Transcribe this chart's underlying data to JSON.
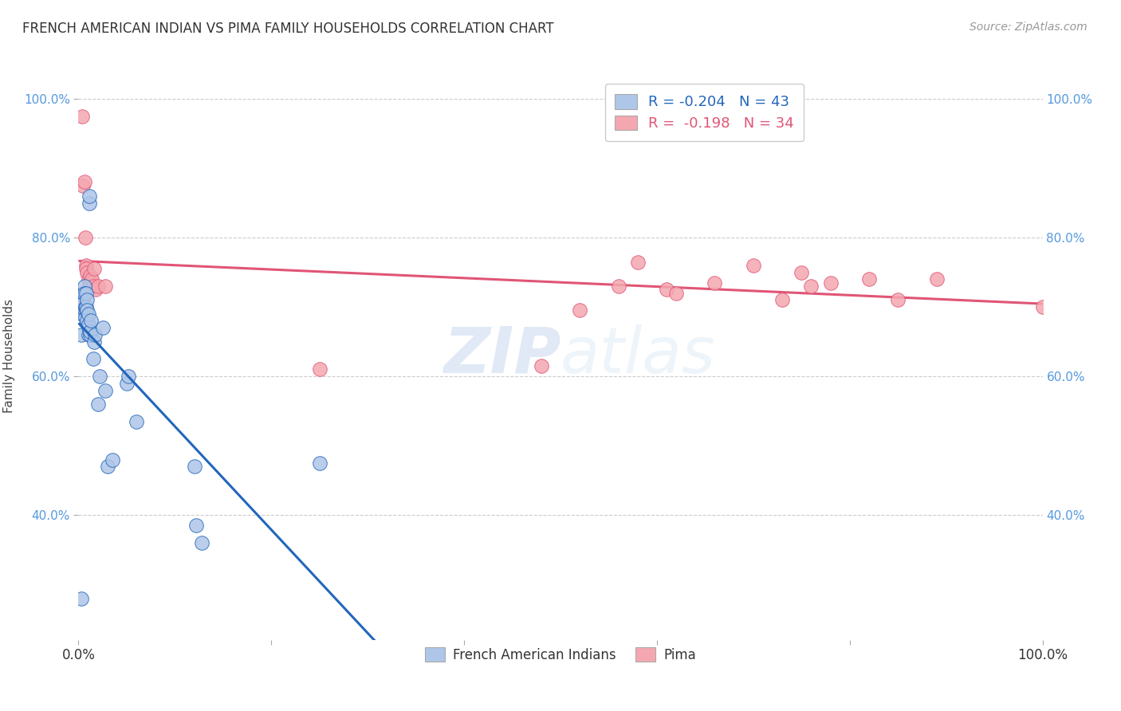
{
  "title": "FRENCH AMERICAN INDIAN VS PIMA FAMILY HOUSEHOLDS CORRELATION CHART",
  "source": "Source: ZipAtlas.com",
  "ylabel": "Family Households",
  "legend_label1": "French American Indians",
  "legend_label2": "Pima",
  "r1": -0.204,
  "n1": 43,
  "r2": -0.198,
  "n2": 34,
  "color1": "#aec6e8",
  "color2": "#f4a7b0",
  "line_color1": "#2266bb",
  "line_color2": "#e05575",
  "dashed_color": "#99bbdd",
  "watermark_zip": "ZIP",
  "watermark_atlas": "atlas",
  "blue_x": [
    0.003,
    0.003,
    0.004,
    0.004,
    0.005,
    0.005,
    0.005,
    0.006,
    0.006,
    0.006,
    0.007,
    0.007,
    0.008,
    0.008,
    0.008,
    0.009,
    0.009,
    0.009,
    0.01,
    0.01,
    0.01,
    0.01,
    0.011,
    0.011,
    0.012,
    0.012,
    0.013,
    0.015,
    0.016,
    0.017,
    0.02,
    0.022,
    0.025,
    0.028,
    0.03,
    0.035,
    0.05,
    0.052,
    0.06,
    0.12,
    0.122,
    0.128,
    0.25
  ],
  "blue_y": [
    0.28,
    0.66,
    0.7,
    0.69,
    0.71,
    0.72,
    0.705,
    0.695,
    0.73,
    0.72,
    0.7,
    0.685,
    0.695,
    0.72,
    0.7,
    0.71,
    0.695,
    0.68,
    0.67,
    0.66,
    0.675,
    0.69,
    0.85,
    0.86,
    0.66,
    0.665,
    0.68,
    0.625,
    0.65,
    0.66,
    0.56,
    0.6,
    0.67,
    0.58,
    0.47,
    0.48,
    0.59,
    0.6,
    0.535,
    0.47,
    0.385,
    0.36,
    0.475
  ],
  "pink_x": [
    0.004,
    0.005,
    0.006,
    0.007,
    0.008,
    0.008,
    0.009,
    0.01,
    0.011,
    0.012,
    0.013,
    0.014,
    0.015,
    0.016,
    0.018,
    0.02,
    0.028,
    0.25,
    0.48,
    0.52,
    0.56,
    0.58,
    0.61,
    0.62,
    0.66,
    0.7,
    0.73,
    0.75,
    0.76,
    0.78,
    0.82,
    0.85,
    0.89,
    1.0
  ],
  "pink_y": [
    0.975,
    0.875,
    0.88,
    0.8,
    0.76,
    0.755,
    0.75,
    0.74,
    0.735,
    0.745,
    0.735,
    0.74,
    0.73,
    0.755,
    0.725,
    0.73,
    0.73,
    0.61,
    0.615,
    0.695,
    0.73,
    0.765,
    0.725,
    0.72,
    0.735,
    0.76,
    0.71,
    0.75,
    0.73,
    0.735,
    0.74,
    0.71,
    0.74,
    0.7
  ],
  "xlim": [
    0.0,
    1.0
  ],
  "ylim": [
    0.22,
    1.04
  ],
  "xtick_positions": [
    0.0,
    0.2,
    0.4,
    0.6,
    0.8,
    1.0
  ],
  "xtick_labels_show": {
    "0.0": "0.0%",
    "1.0": "100.0%"
  },
  "yticks": [
    0.4,
    0.6,
    0.8,
    1.0
  ],
  "yticklabels": [
    "40.0%",
    "60.0%",
    "80.0%",
    "100.0%"
  ],
  "background_color": "#ffffff",
  "grid_color": "#cccccc",
  "blue_line_end_x": 0.5,
  "blue_line_start_x": 0.0
}
